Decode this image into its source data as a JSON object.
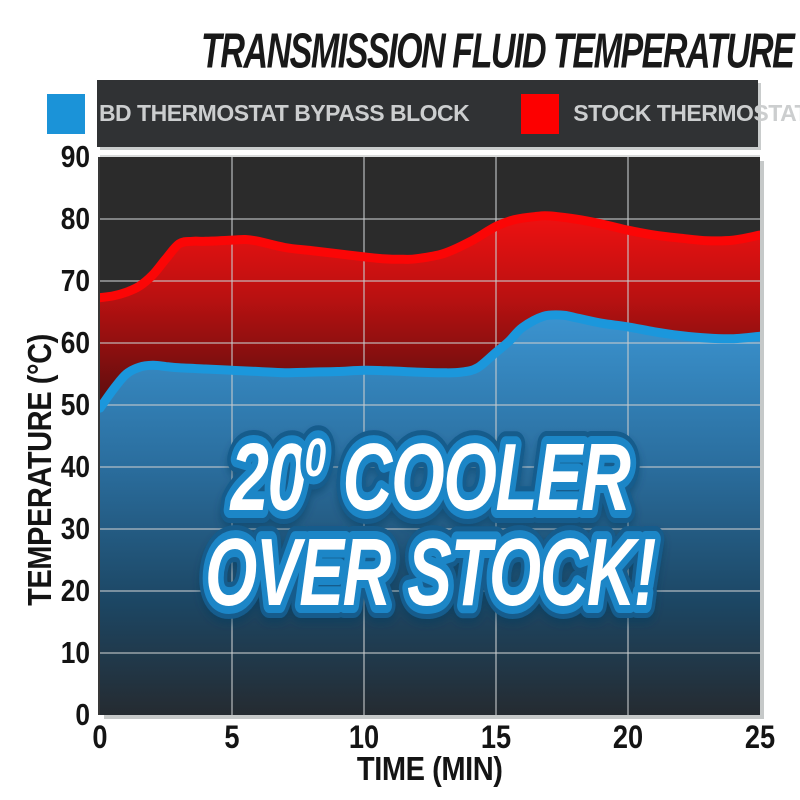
{
  "page_background": "#ffffff",
  "legend": {
    "background": "#303234",
    "text_color": "#cccecf"
  },
  "overlay": {
    "prefix": "20",
    "superscript": "0",
    "suffix": " COOLER",
    "line2": "OVER STOCK!",
    "fill": "#ffffff",
    "outline": "#1f86c7",
    "outer_outline": "#135c8c"
  },
  "chart_data": {
    "type": "area",
    "title": "TRANSMISSION FLUID TEMPERATURE",
    "xlabel": "TIME (MIN)",
    "ylabel": "TEMPERATURE (°C)",
    "xlim": [
      0,
      25
    ],
    "ylim": [
      0,
      90
    ],
    "x_ticks": [
      0,
      5,
      10,
      15,
      20,
      25
    ],
    "y_ticks": [
      0,
      10,
      20,
      30,
      40,
      50,
      60,
      70,
      80,
      90
    ],
    "grid": true,
    "legend_position": "top",
    "plot_background": "#2b2b2b",
    "gridline_color": "#c7cbcc",
    "series": [
      {
        "name": "STOCK THERMOSTAT",
        "color": "#fb0606",
        "swatch_color": "#fd0000",
        "fill_gradient": [
          "#ee1111",
          "#b91111",
          "#4e0d0d"
        ],
        "points": [
          [
            0,
            67.3
          ],
          [
            0.5,
            67.6
          ],
          [
            1,
            68.2
          ],
          [
            1.5,
            69.2
          ],
          [
            2,
            71
          ],
          [
            2.5,
            73.6
          ],
          [
            3,
            76
          ],
          [
            3.5,
            76.4
          ],
          [
            4,
            76.4
          ],
          [
            5,
            76.6
          ],
          [
            5.5,
            76.7
          ],
          [
            6,
            76.4
          ],
          [
            7,
            75.4
          ],
          [
            8,
            74.9
          ],
          [
            9,
            74.4
          ],
          [
            10,
            73.9
          ],
          [
            10.7,
            73.6
          ],
          [
            11.5,
            73.5
          ],
          [
            12,
            73.6
          ],
          [
            13,
            74.4
          ],
          [
            14,
            76.3
          ],
          [
            15,
            78.8
          ],
          [
            15.7,
            79.9
          ],
          [
            16.5,
            80.4
          ],
          [
            17,
            80.5
          ],
          [
            18,
            80
          ],
          [
            19,
            79.2
          ],
          [
            20,
            78.2
          ],
          [
            21,
            77.4
          ],
          [
            22,
            76.9
          ],
          [
            23,
            76.5
          ],
          [
            24,
            76.6
          ],
          [
            25,
            77.4
          ]
        ]
      },
      {
        "name": "BD THERMOSTAT BYPASS BLOCK",
        "color": "#1b97dc",
        "swatch_color": "#1b93d8",
        "fill_gradient": [
          "#3b93cf",
          "#2a6d9d",
          "#1c4663",
          "#252b31"
        ],
        "points": [
          [
            0,
            49.5
          ],
          [
            0.5,
            52.5
          ],
          [
            1,
            55
          ],
          [
            1.5,
            56.1
          ],
          [
            2,
            56.4
          ],
          [
            2.5,
            56.2
          ],
          [
            3,
            56
          ],
          [
            4,
            55.8
          ],
          [
            5,
            55.6
          ],
          [
            6,
            55.4
          ],
          [
            7,
            55.2
          ],
          [
            8,
            55.3
          ],
          [
            9,
            55.4
          ],
          [
            10,
            55.6
          ],
          [
            11,
            55.5
          ],
          [
            12,
            55.3
          ],
          [
            13,
            55.2
          ],
          [
            13.7,
            55.3
          ],
          [
            14.3,
            56
          ],
          [
            15,
            58.5
          ],
          [
            15.5,
            60.3
          ],
          [
            16,
            62.5
          ],
          [
            16.8,
            64.3
          ],
          [
            17.5,
            64.5
          ],
          [
            18,
            64.1
          ],
          [
            19,
            63.2
          ],
          [
            20,
            62.6
          ],
          [
            21,
            61.8
          ],
          [
            22,
            61.2
          ],
          [
            23,
            60.8
          ],
          [
            24,
            60.7
          ],
          [
            25,
            61.1
          ]
        ]
      }
    ]
  }
}
